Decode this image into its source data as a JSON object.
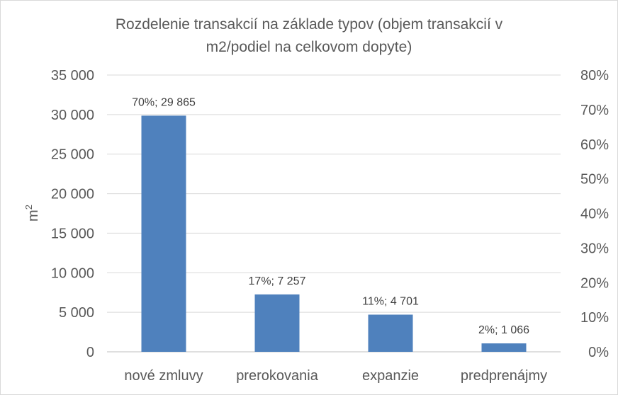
{
  "chart_data": {
    "type": "bar",
    "title_lines": [
      "Rozdelenie transakcií na základe typov (objem transakcií v",
      "m2/podiel na celkovom dopyte)"
    ],
    "ylabel": "m",
    "ylabel_superscript": "2",
    "categories": [
      "nové zmluvy",
      "prerokovania",
      "expanzie",
      "predprenájmy"
    ],
    "values": [
      29865,
      7257,
      4701,
      1066
    ],
    "shares": [
      "70%",
      "17%",
      "11%",
      "2%"
    ],
    "data_labels": [
      "70%; 29 865",
      "17%; 7 257",
      "11%; 4 701",
      "2%; 1 066"
    ],
    "ylim": [
      0,
      35000
    ],
    "yticks": [
      0,
      5000,
      10000,
      15000,
      20000,
      25000,
      30000,
      35000
    ],
    "ytick_labels": [
      "0",
      "5 000",
      "10 000",
      "15 000",
      "20 000",
      "25 000",
      "30 000",
      "35 000"
    ],
    "y2lim": [
      0,
      80
    ],
    "y2ticks": [
      0,
      10,
      20,
      30,
      40,
      50,
      60,
      70,
      80
    ],
    "y2tick_labels": [
      "0%",
      "10%",
      "20%",
      "30%",
      "40%",
      "50%",
      "60%",
      "70%",
      "80%"
    ],
    "grid": true,
    "bar_color": "#4f81bd",
    "grid_color": "#d9d9d9"
  }
}
